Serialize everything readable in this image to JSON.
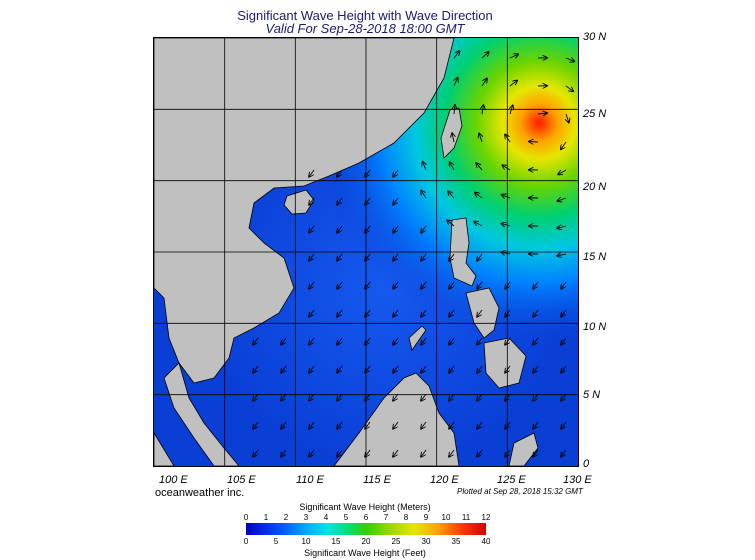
{
  "title": "Significant Wave Height with Wave Direction",
  "subtitle": "Valid For Sep-28-2018 18:00 GMT",
  "brand": "oceanweather inc.",
  "plotted": "Plotted at Sep 28, 2018 15:32 GMT",
  "lat_labels": [
    "30 N",
    "25 N",
    "20 N",
    "15 N",
    "10 N",
    "5 N",
    "0"
  ],
  "lon_labels": [
    "100 E",
    "105 E",
    "110 E",
    "115 E",
    "120 E",
    "125 E",
    "130 E"
  ],
  "colorbar": {
    "title_meters": "Significant Wave Height (Meters)",
    "title_feet": "Significant Wave Height (Feet)",
    "ticks_meters": [
      "0",
      "1",
      "2",
      "3",
      "4",
      "5",
      "6",
      "7",
      "8",
      "9",
      "10",
      "11",
      "12"
    ],
    "ticks_feet": [
      "0",
      "5",
      "10",
      "15",
      "20",
      "25",
      "30",
      "35",
      "40"
    ]
  },
  "colors": {
    "land": "#c0c0c0",
    "low": "#0000c8",
    "high": "#d40000",
    "title": "#1a1a7a"
  }
}
